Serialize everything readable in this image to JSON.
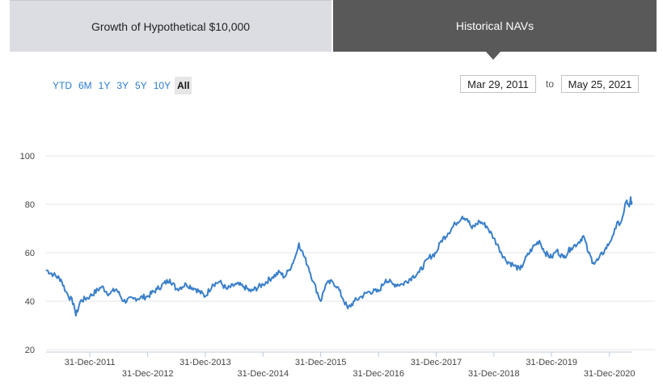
{
  "tabs": [
    {
      "label": "Growth of Hypothetical $10,000"
    },
    {
      "label": "Historical NAVs"
    }
  ],
  "range_buttons": [
    "YTD",
    "6M",
    "1Y",
    "3Y",
    "5Y",
    "10Y",
    "All"
  ],
  "active_range": "All",
  "date_range": {
    "from": "Mar 29, 2011",
    "to_label": "to",
    "to": "May 25, 2021"
  },
  "colors": {
    "line": "#3a7fc9",
    "grid": "#e6e6e6",
    "active_tab": "#595959",
    "inactive_tab": "#dcdde3",
    "link": "#2b7cd3"
  },
  "chart_data": {
    "type": "line",
    "title": "",
    "xlabel": "",
    "ylabel": "",
    "ylim": [
      20,
      100
    ],
    "yticks": [
      20,
      40,
      60,
      80,
      100
    ],
    "xticks": [
      {
        "date": "2011-12-31",
        "label": "31-Dec-2011",
        "row": 0
      },
      {
        "date": "2012-12-31",
        "label": "31-Dec-2012",
        "row": 1
      },
      {
        "date": "2013-12-31",
        "label": "31-Dec-2013",
        "row": 0
      },
      {
        "date": "2014-12-31",
        "label": "31-Dec-2014",
        "row": 1
      },
      {
        "date": "2015-12-31",
        "label": "31-Dec-2015",
        "row": 0
      },
      {
        "date": "2016-12-31",
        "label": "31-Dec-2016",
        "row": 1
      },
      {
        "date": "2017-12-31",
        "label": "31-Dec-2017",
        "row": 0
      },
      {
        "date": "2018-12-31",
        "label": "31-Dec-2018",
        "row": 1
      },
      {
        "date": "2019-12-31",
        "label": "31-Dec-2019",
        "row": 0
      },
      {
        "date": "2020-12-31",
        "label": "31-Dec-2020",
        "row": 1
      }
    ],
    "grid": true,
    "legend": "none",
    "series": [
      {
        "points": [
          [
            "2011-03-29",
            53
          ],
          [
            "2011-05-15",
            51
          ],
          [
            "2011-07-01",
            49
          ],
          [
            "2011-08-01",
            44
          ],
          [
            "2011-09-20",
            39
          ],
          [
            "2011-10-04",
            34
          ],
          [
            "2011-11-01",
            40
          ],
          [
            "2011-12-31",
            42
          ],
          [
            "2012-03-15",
            46
          ],
          [
            "2012-05-01",
            43
          ],
          [
            "2012-06-15",
            45
          ],
          [
            "2012-08-01",
            40
          ],
          [
            "2012-10-01",
            41
          ],
          [
            "2012-12-31",
            42
          ],
          [
            "2013-03-01",
            45
          ],
          [
            "2013-05-20",
            49
          ],
          [
            "2013-07-01",
            45
          ],
          [
            "2013-09-01",
            47
          ],
          [
            "2013-11-01",
            45
          ],
          [
            "2013-12-31",
            42
          ],
          [
            "2014-02-15",
            47
          ],
          [
            "2014-04-01",
            48
          ],
          [
            "2014-05-15",
            45
          ],
          [
            "2014-07-15",
            47
          ],
          [
            "2014-09-01",
            46
          ],
          [
            "2014-10-15",
            44
          ],
          [
            "2014-12-31",
            47
          ],
          [
            "2015-03-01",
            50
          ],
          [
            "2015-04-15",
            52
          ],
          [
            "2015-05-15",
            50
          ],
          [
            "2015-06-15",
            53
          ],
          [
            "2015-07-15",
            57
          ],
          [
            "2015-08-01",
            60
          ],
          [
            "2015-08-15",
            64
          ],
          [
            "2015-09-01",
            61
          ],
          [
            "2015-10-15",
            54
          ],
          [
            "2015-11-15",
            48
          ],
          [
            "2015-12-31",
            40
          ],
          [
            "2016-02-01",
            47
          ],
          [
            "2016-03-15",
            48
          ],
          [
            "2016-04-15",
            46
          ],
          [
            "2016-05-20",
            41
          ],
          [
            "2016-06-20",
            37
          ],
          [
            "2016-08-01",
            40
          ],
          [
            "2016-09-15",
            42
          ],
          [
            "2016-11-01",
            44
          ],
          [
            "2016-12-31",
            44
          ],
          [
            "2017-02-15",
            49
          ],
          [
            "2017-04-01",
            47
          ],
          [
            "2017-06-01",
            47
          ],
          [
            "2017-08-01",
            50
          ],
          [
            "2017-09-15",
            52
          ],
          [
            "2017-11-15",
            58
          ],
          [
            "2017-12-31",
            60
          ],
          [
            "2018-02-01",
            65
          ],
          [
            "2018-03-15",
            68
          ],
          [
            "2018-05-01",
            72
          ],
          [
            "2018-06-15",
            75
          ],
          [
            "2018-07-15",
            74
          ],
          [
            "2018-08-15",
            70
          ],
          [
            "2018-10-01",
            73
          ],
          [
            "2018-11-15",
            71
          ],
          [
            "2018-12-31",
            66
          ],
          [
            "2019-02-01",
            62
          ],
          [
            "2019-03-15",
            57
          ],
          [
            "2019-05-01",
            55
          ],
          [
            "2019-06-15",
            53
          ],
          [
            "2019-07-15",
            57
          ],
          [
            "2019-09-01",
            62
          ],
          [
            "2019-10-15",
            65
          ],
          [
            "2019-11-20",
            60
          ],
          [
            "2019-12-31",
            58
          ],
          [
            "2020-02-01",
            61
          ],
          [
            "2020-03-15",
            58
          ],
          [
            "2020-05-01",
            62
          ],
          [
            "2020-06-15",
            64
          ],
          [
            "2020-07-20",
            67
          ],
          [
            "2020-08-20",
            60
          ],
          [
            "2020-09-20",
            56
          ],
          [
            "2020-10-20",
            57
          ],
          [
            "2020-12-01",
            61
          ],
          [
            "2020-12-31",
            64
          ],
          [
            "2021-01-20",
            67
          ],
          [
            "2021-02-10",
            70
          ],
          [
            "2021-02-25",
            73
          ],
          [
            "2021-03-10",
            72
          ],
          [
            "2021-03-25",
            75
          ],
          [
            "2021-04-05",
            78
          ],
          [
            "2021-04-15",
            81
          ],
          [
            "2021-04-25",
            80
          ],
          [
            "2021-05-05",
            79
          ],
          [
            "2021-05-15",
            83
          ],
          [
            "2021-05-20",
            80
          ],
          [
            "2021-05-25",
            81
          ]
        ]
      }
    ]
  }
}
